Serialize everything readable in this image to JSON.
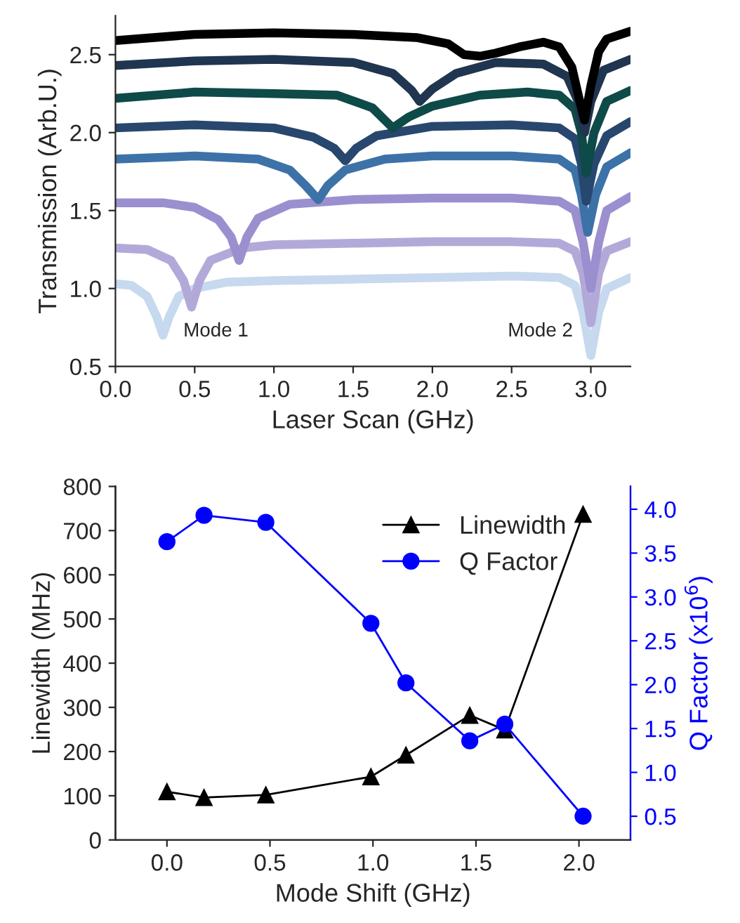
{
  "chart_data": [
    {
      "type": "line",
      "xlabel": "Laser Scan (GHz)",
      "ylabel": "Transmission (Arb.U.)",
      "xlim": [
        0,
        3.25
      ],
      "ylim": [
        0.5,
        2.75
      ],
      "xticks": [
        {
          "value": 0,
          "label": "0.0"
        },
        0.5,
        {
          "value": 1,
          "label": "1.0"
        },
        1.5,
        {
          "value": 2,
          "label": "2.0"
        },
        2.5,
        {
          "value": 3,
          "label": "3.0"
        }
      ],
      "yticks": [
        0.5,
        {
          "value": 1,
          "label": "1.0"
        },
        1.5,
        {
          "value": 2,
          "label": "2.0"
        },
        2.5
      ],
      "grid": false,
      "legend": false,
      "marker": "none",
      "line_style": "solid",
      "annotations": [
        "Mode 1",
        "Mode 2"
      ],
      "series": [
        {
          "color": "#c6d9ee",
          "x": [
            0,
            0.1,
            0.2,
            0.26,
            0.3,
            0.34,
            0.4,
            0.5,
            0.7,
            1.0,
            1.5,
            2.0,
            2.5,
            2.8,
            2.9,
            2.95,
            3.0,
            3.05,
            3.1,
            3.25
          ],
          "values": [
            1.03,
            1.02,
            0.95,
            0.82,
            0.7,
            0.82,
            0.95,
            1.0,
            1.04,
            1.05,
            1.06,
            1.07,
            1.08,
            1.07,
            1.02,
            0.85,
            0.57,
            0.85,
            1.0,
            1.07
          ]
        },
        {
          "color": "#b3a9d9",
          "x": [
            0,
            0.2,
            0.35,
            0.43,
            0.48,
            0.53,
            0.6,
            0.8,
            1.0,
            1.5,
            2.0,
            2.5,
            2.8,
            2.9,
            2.95,
            3.0,
            3.05,
            3.1,
            3.25
          ],
          "values": [
            1.26,
            1.25,
            1.18,
            1.05,
            0.88,
            1.05,
            1.18,
            1.26,
            1.28,
            1.29,
            1.3,
            1.3,
            1.29,
            1.24,
            1.1,
            0.78,
            1.1,
            1.24,
            1.3
          ]
        },
        {
          "color": "#9b8fcf",
          "x": [
            0,
            0.3,
            0.5,
            0.65,
            0.73,
            0.78,
            0.83,
            0.9,
            1.1,
            1.5,
            2.0,
            2.5,
            2.8,
            2.9,
            2.95,
            3.0,
            3.05,
            3.1,
            3.25
          ],
          "values": [
            1.55,
            1.55,
            1.52,
            1.44,
            1.33,
            1.18,
            1.33,
            1.45,
            1.54,
            1.57,
            1.58,
            1.58,
            1.56,
            1.5,
            1.3,
            1.0,
            1.3,
            1.5,
            1.59
          ]
        },
        {
          "color": "#3c72a8",
          "x": [
            0,
            0.5,
            0.9,
            1.1,
            1.2,
            1.28,
            1.34,
            1.45,
            1.7,
            2.0,
            2.5,
            2.8,
            2.9,
            2.94,
            2.98,
            3.03,
            3.1,
            3.25
          ],
          "values": [
            1.83,
            1.85,
            1.83,
            1.76,
            1.66,
            1.57,
            1.66,
            1.76,
            1.83,
            1.85,
            1.85,
            1.83,
            1.76,
            1.6,
            1.36,
            1.6,
            1.78,
            1.87
          ]
        },
        {
          "color": "#27476e",
          "x": [
            0,
            0.5,
            1.0,
            1.25,
            1.38,
            1.45,
            1.52,
            1.65,
            2.0,
            2.5,
            2.8,
            2.9,
            2.94,
            2.97,
            3.02,
            3.1,
            3.25
          ],
          "values": [
            2.03,
            2.05,
            2.03,
            1.97,
            1.9,
            1.82,
            1.9,
            1.98,
            2.04,
            2.05,
            2.03,
            1.96,
            1.8,
            1.56,
            1.8,
            1.98,
            2.07
          ]
        },
        {
          "color": "#0e4a48",
          "x": [
            0,
            0.5,
            1.0,
            1.4,
            1.62,
            1.75,
            1.85,
            2.0,
            2.3,
            2.6,
            2.8,
            2.9,
            2.94,
            2.97,
            3.02,
            3.1,
            3.25
          ],
          "values": [
            2.22,
            2.26,
            2.25,
            2.24,
            2.16,
            2.03,
            2.1,
            2.17,
            2.24,
            2.26,
            2.24,
            2.15,
            2.0,
            1.74,
            2.0,
            2.2,
            2.27
          ]
        },
        {
          "color": "#1f3550",
          "x": [
            0,
            0.5,
            1.0,
            1.5,
            1.75,
            1.87,
            1.92,
            2.0,
            2.15,
            2.4,
            2.7,
            2.85,
            2.92,
            2.96,
            3.0,
            3.08,
            3.25
          ],
          "values": [
            2.43,
            2.46,
            2.47,
            2.45,
            2.38,
            2.27,
            2.2,
            2.28,
            2.38,
            2.45,
            2.44,
            2.36,
            2.2,
            2.0,
            2.2,
            2.4,
            2.47
          ]
        },
        {
          "color": "#000000",
          "x": [
            0,
            0.5,
            1.0,
            1.5,
            1.9,
            2.1,
            2.2,
            2.3,
            2.4,
            2.55,
            2.7,
            2.8,
            2.88,
            2.93,
            2.96,
            3.0,
            3.05,
            3.1,
            3.25
          ],
          "values": [
            2.59,
            2.63,
            2.64,
            2.63,
            2.61,
            2.57,
            2.5,
            2.49,
            2.51,
            2.55,
            2.58,
            2.55,
            2.42,
            2.2,
            2.08,
            2.3,
            2.52,
            2.6,
            2.65
          ]
        }
      ]
    },
    {
      "type": "line",
      "xlabel": "Mode Shift (GHz)",
      "ylabel": "Linewidth (MHz)",
      "y2label": "Q Factor (x10$^{6}$)",
      "xlim": [
        -0.25,
        2.25
      ],
      "ylim": [
        0,
        800
      ],
      "y2lim": [
        0.23,
        4.26
      ],
      "xticks": [
        {
          "value": 0,
          "label": "0.0"
        },
        0.5,
        {
          "value": 1,
          "label": "1.0"
        },
        1.5,
        {
          "value": 2,
          "label": "2.0"
        }
      ],
      "yticks": [
        0,
        100,
        200,
        300,
        400,
        500,
        600,
        700,
        800
      ],
      "y2ticks": [
        0.5,
        {
          "value": 1,
          "label": "1.0"
        },
        1.5,
        {
          "value": 2,
          "label": "2.0"
        },
        2.5,
        {
          "value": 3,
          "label": "3.0"
        },
        3.5,
        {
          "value": 4,
          "label": "4.0"
        }
      ],
      "grid": false,
      "legend": "top right",
      "line_style": "solid",
      "series": [
        {
          "name": "Linewidth",
          "color": "#000000",
          "marker": "triangle",
          "x": [
            0,
            0.18,
            0.48,
            0.99,
            1.16,
            1.47,
            1.64,
            2.02
          ],
          "values": [
            109,
            96,
            102,
            143,
            192,
            282,
            249,
            737
          ]
        },
        {
          "name": "Q Factor",
          "color": "#0000ff",
          "marker": "circle",
          "axis": "y2",
          "x": [
            0,
            0.18,
            0.48,
            0.99,
            1.16,
            1.47,
            1.64,
            2.02
          ],
          "values": [
            3.63,
            3.93,
            3.85,
            2.7,
            2.02,
            1.36,
            1.55,
            0.5
          ]
        }
      ]
    }
  ]
}
